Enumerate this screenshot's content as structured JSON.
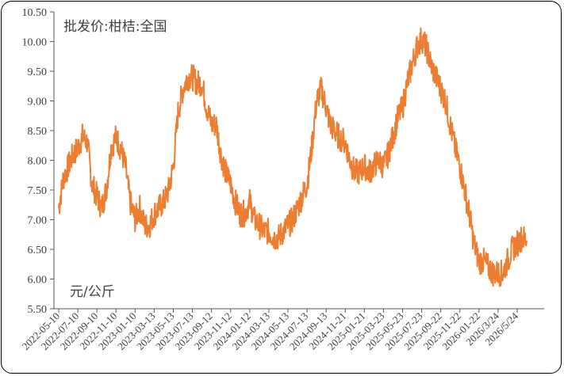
{
  "chart_data": {
    "type": "line",
    "title": "批发价:柑桔:全国",
    "unit_label": "元/公斤",
    "ylim": [
      5.5,
      10.5
    ],
    "y_ticks": [
      "5.50",
      "6.00",
      "6.50",
      "7.00",
      "7.50",
      "8.00",
      "8.50",
      "9.00",
      "9.50",
      "10.00",
      "10.50"
    ],
    "x_tick_labels": [
      "2022-05-10",
      "2022-07-10",
      "2022-09-10",
      "2022-11-10",
      "2023-01-10",
      "2023-03-13",
      "2023-05-13",
      "2023-07-13",
      "2023-09-12",
      "2023-11-12",
      "2024-01-12",
      "2024-03-13",
      "2024-05-13",
      "2024-07-13",
      "2024-09-13",
      "2024-11-21",
      "2025-01-21",
      "2025-03-23",
      "2025-05-23",
      "2025-07-23",
      "2025-09-22",
      "2025-11-22",
      "2026-01-22",
      "2026/3/24",
      "2026/5/24"
    ],
    "grid": false,
    "line_color": "#ED7D31",
    "series": [
      {
        "points": [
          [
            "2022-05-10",
            7.2
          ],
          [
            "2022-05-25",
            7.7
          ],
          [
            "2022-06-10",
            7.9
          ],
          [
            "2022-06-25",
            8.1
          ],
          [
            "2022-07-10",
            8.2
          ],
          [
            "2022-07-25",
            8.4
          ],
          [
            "2022-08-10",
            8.3
          ],
          [
            "2022-08-25",
            7.6
          ],
          [
            "2022-09-10",
            7.4
          ],
          [
            "2022-09-25",
            7.2
          ],
          [
            "2022-10-10",
            7.5
          ],
          [
            "2022-10-25",
            8.2
          ],
          [
            "2022-11-10",
            8.4
          ],
          [
            "2022-11-25",
            8.2
          ],
          [
            "2022-12-10",
            7.9
          ],
          [
            "2022-12-25",
            7.3
          ],
          [
            "2023-01-10",
            7.0
          ],
          [
            "2023-01-25",
            7.2
          ],
          [
            "2023-02-10",
            6.9
          ],
          [
            "2023-02-25",
            6.9
          ],
          [
            "2023-03-13",
            7.1
          ],
          [
            "2023-03-28",
            7.2
          ],
          [
            "2023-04-13",
            7.3
          ],
          [
            "2023-04-28",
            7.5
          ],
          [
            "2023-05-13",
            7.9
          ],
          [
            "2023-05-28",
            8.8
          ],
          [
            "2023-06-13",
            9.2
          ],
          [
            "2023-06-28",
            9.4
          ],
          [
            "2023-07-13",
            9.4
          ],
          [
            "2023-07-28",
            9.3
          ],
          [
            "2023-08-12",
            9.3
          ],
          [
            "2023-08-27",
            8.9
          ],
          [
            "2023-09-12",
            8.6
          ],
          [
            "2023-09-27",
            8.6
          ],
          [
            "2023-10-12",
            8.1
          ],
          [
            "2023-10-27",
            7.8
          ],
          [
            "2023-11-12",
            7.6
          ],
          [
            "2023-11-27",
            7.3
          ],
          [
            "2023-12-12",
            7.1
          ],
          [
            "2023-12-27",
            7.1
          ],
          [
            "2024-01-12",
            7.3
          ],
          [
            "2024-01-27",
            7.0
          ],
          [
            "2024-02-12",
            6.9
          ],
          [
            "2024-02-27",
            6.8
          ],
          [
            "2024-03-13",
            6.8
          ],
          [
            "2024-03-28",
            6.7
          ],
          [
            "2024-04-13",
            6.7
          ],
          [
            "2024-04-28",
            6.8
          ],
          [
            "2024-05-13",
            6.9
          ],
          [
            "2024-05-28",
            7.0
          ],
          [
            "2024-06-13",
            7.2
          ],
          [
            "2024-06-28",
            7.4
          ],
          [
            "2024-07-13",
            7.6
          ],
          [
            "2024-07-28",
            8.2
          ],
          [
            "2024-08-13",
            9.0
          ],
          [
            "2024-08-28",
            9.2
          ],
          [
            "2024-09-13",
            8.9
          ],
          [
            "2024-09-28",
            8.6
          ],
          [
            "2024-10-13",
            8.5
          ],
          [
            "2024-10-28",
            8.4
          ],
          [
            "2024-11-21",
            8.3
          ],
          [
            "2024-12-06",
            8.0
          ],
          [
            "2024-12-21",
            7.8
          ],
          [
            "2025-01-06",
            7.8
          ],
          [
            "2025-01-21",
            7.9
          ],
          [
            "2025-02-05",
            7.8
          ],
          [
            "2025-02-20",
            7.9
          ],
          [
            "2025-03-07",
            8.0
          ],
          [
            "2025-03-23",
            7.9
          ],
          [
            "2025-04-07",
            8.1
          ],
          [
            "2025-04-22",
            8.4
          ],
          [
            "2025-05-07",
            8.7
          ],
          [
            "2025-05-23",
            8.9
          ],
          [
            "2025-06-07",
            9.3
          ],
          [
            "2025-06-22",
            9.6
          ],
          [
            "2025-07-07",
            9.9
          ],
          [
            "2025-07-23",
            10.05
          ],
          [
            "2025-08-07",
            9.9
          ],
          [
            "2025-08-22",
            9.6
          ],
          [
            "2025-09-07",
            9.4
          ],
          [
            "2025-09-22",
            9.2
          ],
          [
            "2025-10-07",
            9.0
          ],
          [
            "2025-10-22",
            8.6
          ],
          [
            "2025-11-07",
            8.2
          ],
          [
            "2025-11-22",
            7.9
          ],
          [
            "2025-12-07",
            7.5
          ],
          [
            "2025-12-22",
            7.1
          ],
          [
            "2026-01-06",
            6.6
          ],
          [
            "2026-01-22",
            6.3
          ],
          [
            "2026-02-06",
            6.3
          ],
          [
            "2026-02-21",
            6.2
          ],
          [
            "2026-03-08",
            6.1
          ],
          [
            "2026-03-24",
            6.1
          ],
          [
            "2026-04-08",
            6.1
          ],
          [
            "2026-04-23",
            6.3
          ],
          [
            "2026-05-08",
            6.5
          ],
          [
            "2026-05-24",
            6.6
          ],
          [
            "2026-06-08",
            6.7
          ],
          [
            "2026-06-23",
            6.65
          ]
        ]
      }
    ]
  }
}
